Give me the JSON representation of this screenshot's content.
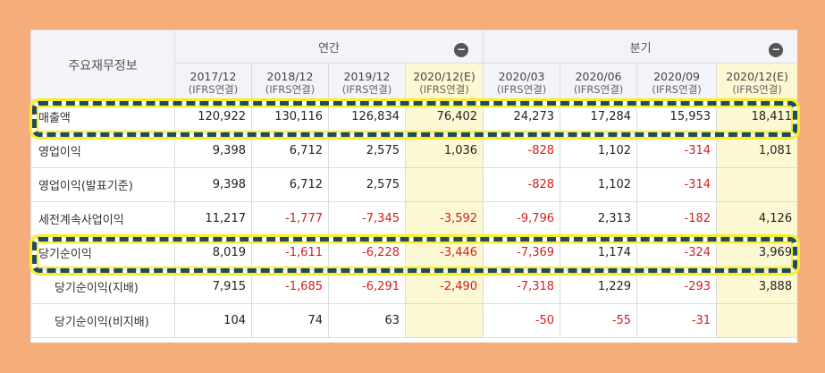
{
  "table": {
    "corner_label": "주요재무정보",
    "groups": [
      {
        "label": "연간"
      },
      {
        "label": "분기"
      }
    ],
    "periods": [
      {
        "date": "2017/12",
        "basis": "(IFRS연결)"
      },
      {
        "date": "2018/12",
        "basis": "(IFRS연결)"
      },
      {
        "date": "2019/12",
        "basis": "(IFRS연결)"
      },
      {
        "date": "2020/12(E)",
        "basis": "(IFRS연결)"
      },
      {
        "date": "2020/03",
        "basis": "(IFRS연결)"
      },
      {
        "date": "2020/06",
        "basis": "(IFRS연결)"
      },
      {
        "date": "2020/09",
        "basis": "(IFRS연결)"
      },
      {
        "date": "2020/12(E)",
        "basis": "(IFRS연결)"
      }
    ],
    "rows": [
      {
        "label": "매출액",
        "values": [
          "120,922",
          "130,116",
          "126,834",
          "76,402",
          "24,273",
          "17,284",
          "15,953",
          "18,411"
        ]
      },
      {
        "label": "영업이익",
        "values": [
          "9,398",
          "6,712",
          "2,575",
          "1,036",
          "-828",
          "1,102",
          "-314",
          "1,081"
        ]
      },
      {
        "label": "영업이익(발표기준)",
        "values": [
          "9,398",
          "6,712",
          "2,575",
          "",
          "-828",
          "1,102",
          "-314",
          ""
        ]
      },
      {
        "label": "세전계속사업이익",
        "values": [
          "11,217",
          "-1,777",
          "-7,345",
          "-3,592",
          "-9,796",
          "2,313",
          "-182",
          "4,126"
        ]
      },
      {
        "label": "당기순이익",
        "values": [
          "8,019",
          "-1,611",
          "-6,228",
          "-3,446",
          "-7,369",
          "1,174",
          "-324",
          "3,969"
        ]
      },
      {
        "label": "당기순이익(지배)",
        "values": [
          "7,915",
          "-1,685",
          "-6,291",
          "-2,490",
          "-7,318",
          "1,229",
          "-293",
          "3,888"
        ]
      },
      {
        "label": "당기순이익(비지배)",
        "values": [
          "104",
          "74",
          "63",
          "",
          "-50",
          "-55",
          "-31",
          ""
        ]
      }
    ]
  },
  "colors": {
    "negative": "#d31f1f",
    "estimate_bg": "#fdf8d4",
    "highlight_border": "#1f4a60",
    "highlight_glow": "#f7ef24",
    "background": "#f4ad7b"
  },
  "icons": {
    "collapse": "minus-circle-icon"
  }
}
